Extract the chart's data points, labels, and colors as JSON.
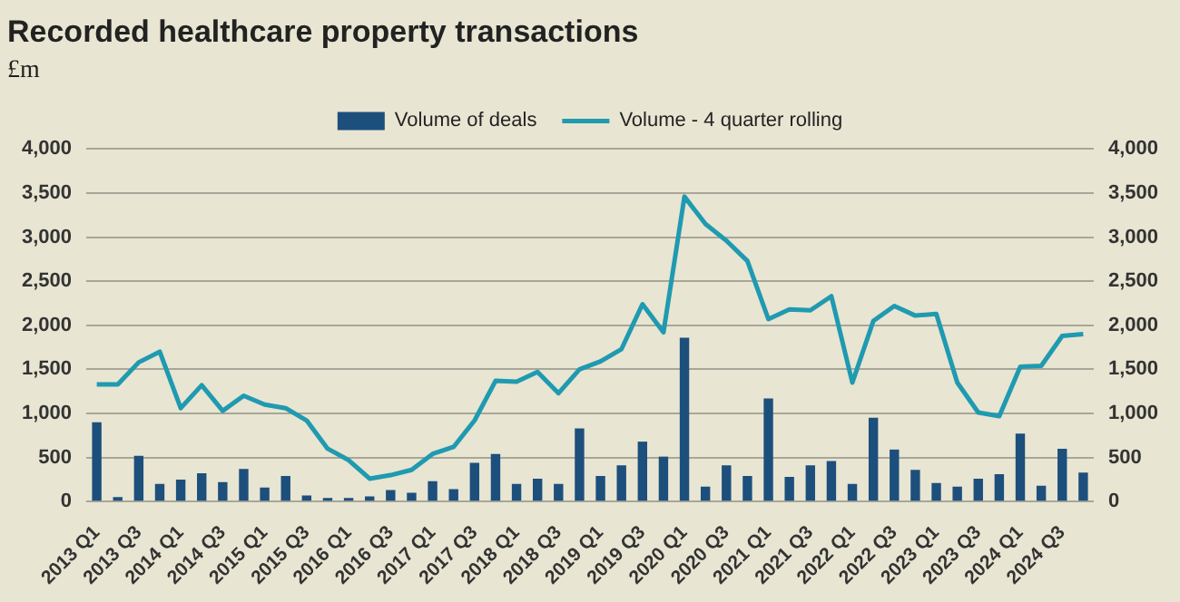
{
  "chart_data": {
    "type": "bar",
    "title": "Recorded healthcare property transactions",
    "annotations": [
      "£m"
    ],
    "categories": [
      "2013 Q1",
      null,
      "2013 Q3",
      null,
      "2014 Q1",
      null,
      "2014 Q3",
      null,
      "2015 Q1",
      null,
      "2015 Q3",
      null,
      "2016 Q1",
      null,
      "2016 Q3",
      null,
      "2017 Q1",
      null,
      "2017 Q3",
      null,
      "2018 Q1",
      null,
      "2018 Q3",
      null,
      "2019 Q1",
      null,
      "2019 Q3",
      null,
      "2020 Q1",
      null,
      "2020 Q3",
      null,
      "2021 Q1",
      null,
      "2021 Q3",
      null,
      "2022 Q1",
      null,
      "2022 Q3",
      null,
      "2023 Q1",
      null,
      "2023 Q3",
      null,
      "2024 Q1",
      null,
      "2024 Q3",
      null
    ],
    "series": [
      {
        "name": "Volume of deals",
        "color": "#1d4f7c",
        "values": [
          900,
          50,
          520,
          200,
          250,
          320,
          220,
          370,
          160,
          290,
          70,
          40,
          40,
          60,
          130,
          100,
          230,
          140,
          440,
          540,
          200,
          260,
          200,
          830,
          290,
          410,
          680,
          510,
          1860,
          170,
          410,
          290,
          1170,
          280,
          410,
          460,
          200,
          950,
          590,
          360,
          210,
          170,
          260,
          310,
          770,
          180,
          600,
          330
        ]
      },
      {
        "name": "Volume - 4 quarter rolling",
        "type": "line",
        "axis": "y2",
        "color": "#1f9ab0",
        "values": [
          1330,
          1330,
          1580,
          1700,
          1060,
          1320,
          1030,
          1200,
          1100,
          1060,
          920,
          600,
          470,
          260,
          300,
          360,
          540,
          620,
          920,
          1370,
          1360,
          1470,
          1230,
          1500,
          1590,
          1730,
          2240,
          1920,
          3460,
          3150,
          2960,
          2730,
          2070,
          2180,
          2170,
          2330,
          1350,
          2050,
          2220,
          2110,
          2130,
          1350,
          1010,
          970,
          1530,
          1540,
          1880,
          1900
        ]
      }
    ],
    "ylim": [
      0,
      4000
    ],
    "yticks": [
      0,
      500,
      {
        "value": 1000,
        "label": "1,000"
      },
      {
        "value": 1500,
        "label": "1,500"
      },
      {
        "value": 2000,
        "label": "2,000"
      },
      {
        "value": 2500,
        "label": "2,500"
      },
      {
        "value": 3000,
        "label": "3,000"
      },
      {
        "value": 3500,
        "label": "3,500"
      },
      {
        "value": 4000,
        "label": "4,000"
      }
    ],
    "y2lim": [
      0,
      4000
    ],
    "y2ticks": [
      0,
      500,
      {
        "value": 1000,
        "label": "1,000"
      },
      {
        "value": 1500,
        "label": "1,500"
      },
      {
        "value": 2000,
        "label": "2,000"
      },
      {
        "value": 2500,
        "label": "2,500"
      },
      {
        "value": 3000,
        "label": "3,000"
      },
      {
        "value": 3500,
        "label": "3,500"
      },
      {
        "value": 4000,
        "label": "4,000"
      }
    ],
    "grid": "y",
    "legend": "top",
    "marker": "none"
  }
}
